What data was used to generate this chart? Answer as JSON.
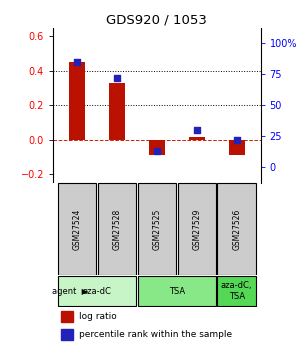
{
  "title": "GDS920 / 1053",
  "samples": [
    "GSM27524",
    "GSM27528",
    "GSM27525",
    "GSM27529",
    "GSM27526"
  ],
  "log_ratio": [
    0.45,
    0.33,
    -0.09,
    0.015,
    -0.09
  ],
  "percentile": [
    85,
    72,
    13,
    30,
    22
  ],
  "agents": [
    {
      "label": "aza-dC",
      "span": [
        0,
        2
      ],
      "color": "#c8f5c8"
    },
    {
      "label": "TSA",
      "span": [
        2,
        4
      ],
      "color": "#88e888"
    },
    {
      "label": "aza-dC,\nTSA",
      "span": [
        4,
        5
      ],
      "color": "#55d855"
    }
  ],
  "ylim_left": [
    -0.25,
    0.65
  ],
  "ylim_right": [
    -12.5,
    112.5
  ],
  "y_ticks_left": [
    -0.2,
    0.0,
    0.2,
    0.4,
    0.6
  ],
  "y_ticks_right": [
    0,
    25,
    50,
    75,
    100
  ],
  "bar_color": "#bb1100",
  "dot_color": "#2222bb",
  "hline_color": "#cc2200",
  "background_color": "#ffffff",
  "sample_box_color": "#cccccc",
  "legend_red_label": "log ratio",
  "legend_blue_label": "percentile rank within the sample",
  "bar_width": 0.4,
  "dot_size": 25
}
